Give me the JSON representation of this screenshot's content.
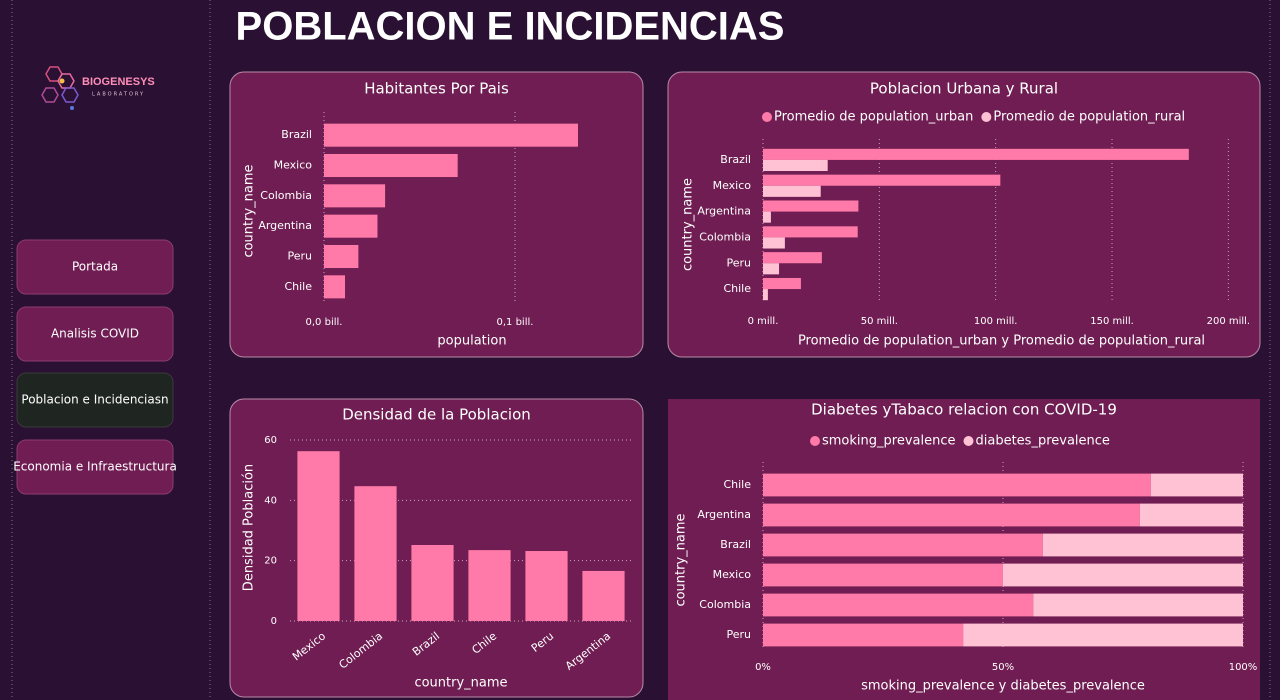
{
  "page_title": "POBLACION E INCIDENCIAS",
  "logo": {
    "name": "BIOGENESYS",
    "subtitle": "LABORATORY"
  },
  "nav": [
    "Portada",
    "Analisis COVID",
    "Poblacion e Incidenciasn",
    "Economia e Infraestructura"
  ],
  "chart_data": [
    {
      "type": "hbar",
      "title": "Habitantes Por Pais",
      "xlabel": "population",
      "ylabel": "country_name",
      "categories": [
        "Brazil",
        "Mexico",
        "Colombia",
        "Argentina",
        "Peru",
        "Chile"
      ],
      "values": [
        0.133,
        0.07,
        0.032,
        0.028,
        0.018,
        0.011
      ],
      "color": "#ff7aa8",
      "xlim": [
        0,
        0.155
      ],
      "xticks": [
        {
          "value": 0,
          "label": "0,0 bill."
        },
        {
          "value": 0.1,
          "label": "0,1 bill."
        }
      ],
      "grid": true
    },
    {
      "type": "hbar",
      "title": "Poblacion Urbana y Rural",
      "xlabel": "Promedio de population_urban y Promedio de population_rural",
      "ylabel": "country_name",
      "categories": [
        "Brazil",
        "Mexico",
        "Argentina",
        "Colombia",
        "Peru",
        "Chile"
      ],
      "series": [
        {
          "name": "Promedio de population_urban",
          "color": "#ff7aa8",
          "values": [
            183,
            102,
            41,
            40.7,
            25.3,
            16.3
          ]
        },
        {
          "name": "Promedio de population_rural",
          "color": "#ffc2d4",
          "values": [
            27.8,
            24.8,
            3.4,
            9.4,
            6.9,
            2.1
          ]
        }
      ],
      "xlim": [
        0,
        205
      ],
      "xticks": [
        {
          "value": 0,
          "label": "0 mill."
        },
        {
          "value": 50,
          "label": "50 mill."
        },
        {
          "value": 100,
          "label": "100 mill."
        },
        {
          "value": 150,
          "label": "150 mill."
        },
        {
          "value": 200,
          "label": "200 mill."
        }
      ],
      "grid": true,
      "legend": "top"
    },
    {
      "type": "bar",
      "title": "Densidad de la Poblacion",
      "xlabel": "country_name",
      "ylabel": "Densidad Población",
      "categories": [
        "Mexico",
        "Colombia",
        "Brazil",
        "Chile",
        "Peru",
        "Argentina"
      ],
      "values": [
        56.3,
        44.7,
        25.2,
        23.5,
        23.2,
        16.6
      ],
      "color": "#ff7aa8",
      "ylim": [
        0,
        62
      ],
      "yticks": [
        0,
        20,
        40,
        60
      ],
      "grid": true
    },
    {
      "type": "hbar",
      "stacked": true,
      "title": "Diabetes yTabaco relacion con COVID-19",
      "xlabel": "smoking_prevalence y diabetes_prevalence",
      "ylabel": "country_name",
      "categories": [
        "Chile",
        "Argentina",
        "Brazil",
        "Mexico",
        "Colombia",
        "Peru"
      ],
      "series": [
        {
          "name": "smoking_prevalence",
          "color": "#ff7aa8",
          "values": [
            80.8,
            78.5,
            58.3,
            50,
            56.3,
            41.7
          ]
        },
        {
          "name": "diabetes_prevalence",
          "color": "#ffc2d4",
          "values": [
            19.2,
            21.5,
            41.7,
            50,
            43.7,
            58.3
          ]
        }
      ],
      "xlim": [
        0,
        100
      ],
      "xticks": [
        {
          "value": 0,
          "label": "0%"
        },
        {
          "value": 50,
          "label": "50%"
        },
        {
          "value": 100,
          "label": "100%"
        }
      ],
      "grid": true,
      "legend": "top"
    }
  ]
}
